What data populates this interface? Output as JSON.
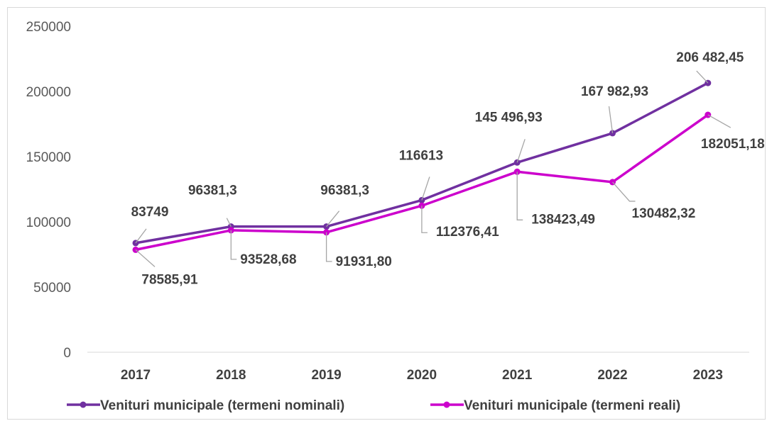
{
  "chart_data": {
    "type": "line",
    "categories": [
      "2017",
      "2018",
      "2019",
      "2020",
      "2021",
      "2022",
      "2023"
    ],
    "ylim": [
      0,
      250000
    ],
    "yticks": [
      "0",
      "50000",
      "100000",
      "150000",
      "200000",
      "250000"
    ],
    "grid": false,
    "legend_position": "bottom",
    "series": [
      {
        "name": "Venituri municipale (termeni nominali)",
        "color": "#7030a0",
        "values": [
          83749,
          96381.3,
          96381.3,
          116613,
          145496.93,
          167982.93,
          206482.45
        ],
        "labels": [
          "83749",
          "96381,3",
          "96381,3",
          "116613",
          "145 496,93",
          "167 982,93",
          "206 482,45"
        ]
      },
      {
        "name": "Venituri municipale (termeni reali)",
        "color": "#cc00cc",
        "values": [
          78585.91,
          93528.68,
          91931.8,
          112376.41,
          138423.49,
          130482.32,
          182051.18
        ],
        "labels": [
          "78585,91",
          "93528,68",
          "91931,80",
          "112376,41",
          "138423,49",
          "130482,32",
          "182051,18"
        ]
      }
    ]
  }
}
